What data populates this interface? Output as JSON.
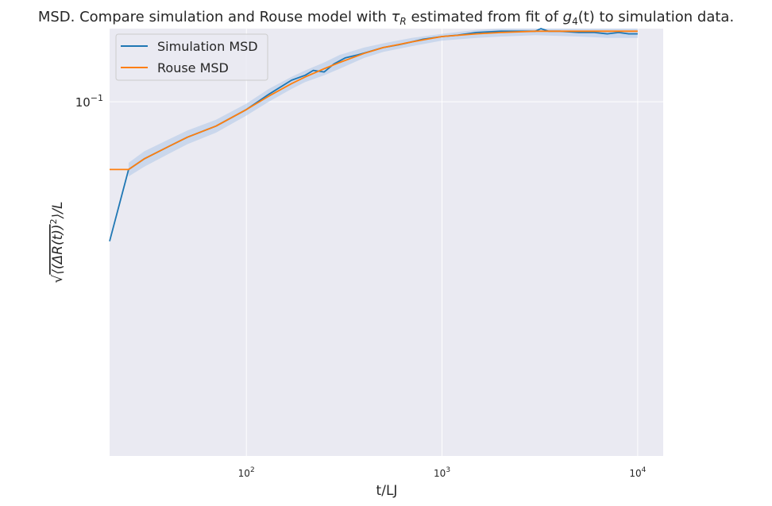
{
  "chart_data": {
    "type": "line",
    "title": "MSD. Compare simulation and Rouse model with τ_R estimated from fit of g_4(t) to simulation data.",
    "title_parts": {
      "pre": "MSD. Compare simulation and Rouse model with ",
      "tau": "τ",
      "tau_sub": "R",
      "mid": " estimated from fit of ",
      "g": "g",
      "g_sub": "4",
      "arg": "(t)",
      "post": " to simulation data."
    },
    "xlabel": "t/LJ",
    "ylabel": "√⟨(ΔR(t))²⟩/L",
    "ylabel_parts": {
      "root": "√",
      "inner": "⟨(ΔR(t))",
      "sup": "2",
      "close": "⟩/L"
    },
    "x_scale": "log",
    "y_scale": "log",
    "xlim": [
      20,
      13500
    ],
    "ylim": [
      0.0155,
      0.147
    ],
    "x_ticks": [
      {
        "value": 100,
        "base": "10",
        "exp": "2"
      },
      {
        "value": 1000,
        "base": "10",
        "exp": "3"
      },
      {
        "value": 10000,
        "base": "10",
        "exp": "4"
      }
    ],
    "y_ticks": [
      {
        "value": 0.1,
        "base": "10",
        "exp": "−1"
      }
    ],
    "grid": true,
    "legend_position": "top-left",
    "colors": {
      "simulation": "#1f77b4",
      "rouse": "#ff7f0e",
      "band": "#aec7e8",
      "background": "#eaeaf2"
    },
    "series": [
      {
        "name": "Simulation MSD",
        "color": "#1f77b4",
        "x": [
          20,
          25,
          30,
          40,
          50,
          70,
          100,
          130,
          170,
          200,
          220,
          250,
          280,
          320,
          370,
          420,
          500,
          600,
          700,
          800,
          1000,
          1200,
          1500,
          2000,
          2500,
          3000,
          3200,
          3500,
          4000,
          5000,
          6000,
          7000,
          8000,
          9000,
          10000
        ],
        "y": [
          0.048,
          0.07,
          0.074,
          0.079,
          0.083,
          0.088,
          0.096,
          0.104,
          0.112,
          0.115,
          0.118,
          0.117,
          0.122,
          0.126,
          0.128,
          0.13,
          0.133,
          0.135,
          0.137,
          0.139,
          0.141,
          0.142,
          0.144,
          0.145,
          0.145,
          0.145,
          0.147,
          0.145,
          0.145,
          0.144,
          0.144,
          0.143,
          0.144,
          0.143,
          0.143
        ]
      },
      {
        "name": "Rouse MSD",
        "color": "#ff7f0e",
        "x": [
          20,
          25,
          30,
          40,
          50,
          70,
          100,
          130,
          170,
          200,
          250,
          300,
          400,
          500,
          700,
          1000,
          1500,
          2000,
          3000,
          5000,
          10000
        ],
        "y": [
          0.07,
          0.07,
          0.074,
          0.079,
          0.083,
          0.088,
          0.096,
          0.103,
          0.11,
          0.114,
          0.119,
          0.123,
          0.129,
          0.133,
          0.137,
          0.141,
          0.143,
          0.144,
          0.145,
          0.145,
          0.145
        ]
      }
    ],
    "band": {
      "x": [
        25,
        30,
        40,
        50,
        70,
        100,
        130,
        170,
        200,
        250,
        300,
        400,
        500,
        700,
        1000,
        1500,
        2000,
        3000,
        5000,
        7000,
        10000
      ],
      "lower": [
        0.0675,
        0.071,
        0.076,
        0.08,
        0.085,
        0.093,
        0.1,
        0.107,
        0.111,
        0.115,
        0.119,
        0.126,
        0.13,
        0.134,
        0.138,
        0.14,
        0.141,
        0.142,
        0.141,
        0.14,
        0.14
      ],
      "upper": [
        0.0725,
        0.077,
        0.082,
        0.086,
        0.091,
        0.099,
        0.107,
        0.114,
        0.118,
        0.123,
        0.128,
        0.133,
        0.136,
        0.14,
        0.143,
        0.146,
        0.147,
        0.147,
        0.147,
        0.147,
        0.147
      ]
    }
  }
}
